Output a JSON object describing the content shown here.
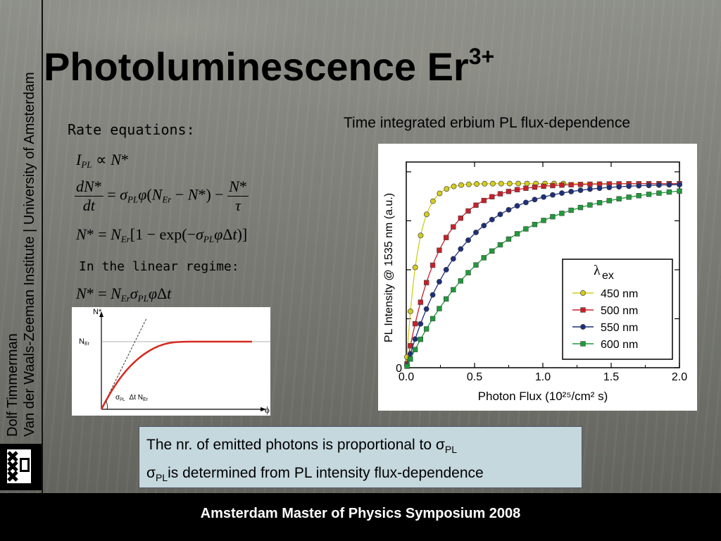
{
  "sidebar": {
    "line1": "Dolf Timmerman",
    "line2": "Van der Waals-Zeeman Institute | University of Amsterdam"
  },
  "title": {
    "text": "Photoluminescence Er",
    "sup": "3+"
  },
  "rate_label": "Rate equations:",
  "equations": {
    "eq1": "I_PL ∝ N*",
    "eq2": "dN*/dt = σ_PL φ(N_Er − N*) − N*/τ",
    "eq3": "N* = N_Er[1 − exp(−σ_PL φΔt)]",
    "eq4": "N* = N_Er σ_PL φΔt"
  },
  "linear_label": "In the linear regime:",
  "sketch": {
    "y_label": "N*",
    "x_label": "ϕ",
    "level_label": "N",
    "level_sub": "Er",
    "slope_label_a": "σ",
    "slope_label_a_sub": "PL",
    "slope_label_b": "Δt N",
    "slope_label_b_sub": "Er"
  },
  "chart_heading": "Time integrated erbium PL flux-dependence",
  "chart_data": {
    "type": "scatter",
    "xlabel": "Photon Flux (10^25/cm^2 s)",
    "ylabel": "PL Intensity @ 1535 nm (a.u.)",
    "xlim": [
      0,
      2.0
    ],
    "ylim": [
      0,
      1.05
    ],
    "x_ticks": [
      "0.0",
      "0.5",
      "1.0",
      "1.5",
      "2.0"
    ],
    "y_ticks": [
      "0"
    ],
    "legend_title": "λex",
    "legend_position": "center-right",
    "series": [
      {
        "name": "450 nm",
        "color": "#d4cc1e",
        "marker": "circle",
        "k": 12.0,
        "xmax": 1.15
      },
      {
        "name": "500 nm",
        "color": "#c8202a",
        "marker": "square",
        "k": 4.2,
        "xmax": 2.0
      },
      {
        "name": "550 nm",
        "color": "#1d2f7a",
        "marker": "circle",
        "k": 2.6,
        "xmax": 2.0
      },
      {
        "name": "600 nm",
        "color": "#1f9a3a",
        "marker": "square",
        "k": 1.6,
        "xmax": 2.0
      }
    ]
  },
  "notes": {
    "line1_text": "The nr. of emitted photons is proportional to σ",
    "line1_sub": "PL",
    "line2_pre": "σ",
    "line2_sub": "PL",
    "line2_text": "is determined from PL intensity flux-dependence"
  },
  "footer": "Amsterdam Master of Physics Symposium 2008",
  "colors": {
    "footer_bg": "#000000",
    "note_bg": "#c5d8de"
  }
}
